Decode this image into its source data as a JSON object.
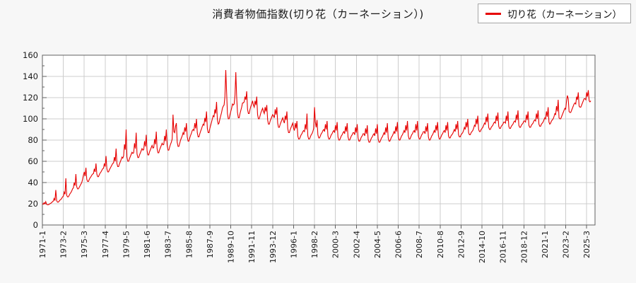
{
  "title": "消費者物価指数(切り花（カーネーション）)",
  "legend": {
    "label": "切り花（カーネーション）",
    "line_color": "#e60000"
  },
  "chart_data": {
    "type": "line",
    "title": "消費者物価指数(切り花（カーネーション）)",
    "series_name": "切り花（カーネーション）",
    "line_color": "#e60000",
    "grid": true,
    "legend_position": "top-right",
    "x_start": {
      "year": 1971,
      "month": 1
    },
    "x_tick_interval_months": 25,
    "x_tick_labels": [
      "1971-1",
      "1973-2",
      "1975-3",
      "1977-4",
      "1979-5",
      "1981-6",
      "1983-7",
      "1985-8",
      "1987-9",
      "1989-10",
      "1991-11",
      "1993-12",
      "1996-1",
      "1998-2",
      "2000-3",
      "2002-4",
      "2004-5",
      "2006-6",
      "2008-7",
      "2010-8",
      "2012-9",
      "2014-10",
      "2016-11",
      "2018-12",
      "2021-1",
      "2023-2",
      "2025-3"
    ],
    "ylim": [
      0,
      160
    ],
    "y_ticks": [
      0,
      20,
      40,
      60,
      80,
      100,
      120,
      140,
      160
    ],
    "y_minor_tick_step": 10,
    "monthly_values": [
      {
        "year": 1971,
        "values": [
          20,
          19.5,
          21,
          20,
          22,
          19.5,
          19,
          19,
          19.5,
          20,
          20.5,
          21
        ]
      },
      {
        "year": 1972,
        "values": [
          22,
          22.5,
          25,
          23,
          33,
          23,
          21.5,
          21.5,
          22.5,
          23.5,
          24,
          25
        ]
      },
      {
        "year": 1973,
        "values": [
          26.5,
          27,
          31,
          29,
          44,
          28,
          26.5,
          26.5,
          28,
          29.5,
          30.5,
          32
        ]
      },
      {
        "year": 1974,
        "values": [
          34,
          35,
          40,
          37,
          48,
          36,
          34,
          34,
          35.5,
          37,
          38.5,
          40
        ]
      },
      {
        "year": 1975,
        "values": [
          43,
          47,
          50,
          46,
          54,
          43,
          41,
          41,
          43,
          44.5,
          45.5,
          47
        ]
      },
      {
        "year": 1976,
        "values": [
          48,
          48.5,
          53,
          50,
          58,
          48,
          45.5,
          45.5,
          47.5,
          49,
          50,
          51.5
        ]
      },
      {
        "year": 1977,
        "values": [
          53,
          53.5,
          58,
          55,
          65,
          53,
          50,
          50,
          52,
          53.5,
          55,
          56.5
        ]
      },
      {
        "year": 1978,
        "values": [
          58,
          58.5,
          64,
          60,
          72,
          58,
          55,
          55,
          57.5,
          59.5,
          61.5,
          64
        ]
      },
      {
        "year": 1979,
        "values": [
          63,
          65,
          76,
          71,
          90,
          64,
          60,
          60,
          62.5,
          64.5,
          66.5,
          68.5
        ]
      },
      {
        "year": 1980,
        "values": [
          67.5,
          68,
          77,
          72,
          87,
          67,
          63.5,
          63.5,
          66,
          68,
          70,
          72
        ]
      },
      {
        "year": 1981,
        "values": [
          70.5,
          71,
          79,
          74,
          85,
          70,
          66,
          66,
          69,
          71,
          73,
          75
        ]
      },
      {
        "year": 1982,
        "values": [
          72.5,
          73,
          81,
          76,
          88,
          72,
          68,
          68,
          71,
          73,
          75,
          77
        ]
      },
      {
        "year": 1983,
        "values": [
          75.5,
          76,
          84,
          79,
          90,
          75,
          70.5,
          70.5,
          73.5,
          76,
          78,
          81
        ]
      },
      {
        "year": 1984,
        "values": [
          104,
          88,
          87,
          93,
          96,
          78,
          74,
          74,
          77,
          80,
          82,
          84
        ]
      },
      {
        "year": 1985,
        "values": [
          87,
          85,
          92,
          88,
          96,
          83,
          79,
          79,
          82,
          84.5,
          86.5,
          89
        ]
      },
      {
        "year": 1986,
        "values": [
          90,
          89,
          96,
          91,
          100,
          87,
          83,
          83,
          86,
          88.5,
          90.5,
          93
        ]
      },
      {
        "year": 1987,
        "values": [
          95,
          94,
          101,
          97,
          107,
          91,
          87,
          87,
          91,
          94,
          97,
          100
        ]
      },
      {
        "year": 1988,
        "values": [
          103,
          102,
          109,
          105,
          116,
          99,
          95,
          96,
          100,
          103,
          106,
          110
        ]
      },
      {
        "year": 1989,
        "values": [
          112,
          113,
          121,
          146,
          125,
          105,
          100,
          100,
          104,
          107,
          110,
          114
        ]
      },
      {
        "year": 1990,
        "values": [
          113,
          114,
          122,
          144,
          121,
          106,
          101,
          101,
          105,
          108,
          111,
          115
        ]
      },
      {
        "year": 1991,
        "values": [
          115,
          116,
          121,
          118,
          126,
          109,
          105,
          105,
          109,
          112,
          114,
          117
        ]
      },
      {
        "year": 1992,
        "values": [
          113,
          111,
          117,
          113,
          121,
          104,
          100,
          100,
          103,
          106,
          108,
          110
        ]
      },
      {
        "year": 1993,
        "values": [
          107,
          105,
          111,
          107,
          113,
          99,
          95,
          95,
          98,
          100,
          102,
          104
        ]
      },
      {
        "year": 1994,
        "values": [
          103,
          101,
          109,
          104,
          111,
          96,
          92,
          92,
          95,
          97,
          99,
          101
        ]
      },
      {
        "year": 1995,
        "values": [
          98,
          96,
          103,
          99,
          107,
          91,
          87,
          87,
          90,
          92,
          94,
          96
        ]
      },
      {
        "year": 1996,
        "values": [
          91,
          89,
          96,
          91,
          98,
          84,
          81,
          81,
          83,
          85,
          86,
          88
        ]
      },
      {
        "year": 1997,
        "values": [
          89,
          88,
          95,
          90,
          105,
          84,
          81,
          81,
          83,
          85,
          86,
          88
        ]
      },
      {
        "year": 1998,
        "values": [
          91,
          111,
          97,
          92,
          99,
          85,
          82,
          82,
          84,
          86,
          87,
          89
        ]
      },
      {
        "year": 1999,
        "values": [
          90,
          88,
          95,
          90,
          98,
          84,
          81,
          81,
          83,
          85,
          86,
          88
        ]
      },
      {
        "year": 2000,
        "values": [
          89,
          87,
          94,
          89,
          97,
          83,
          80,
          80,
          82,
          84,
          85,
          87
        ]
      },
      {
        "year": 2001,
        "values": [
          88,
          86,
          93,
          88,
          96,
          83,
          80,
          80,
          82,
          84,
          85,
          87
        ]
      },
      {
        "year": 2002,
        "values": [
          87,
          85,
          92,
          87,
          95,
          82,
          79,
          79,
          81,
          83,
          84,
          86
        ]
      },
      {
        "year": 2003,
        "values": [
          86,
          84,
          91,
          86,
          94,
          81,
          78,
          78,
          80,
          82,
          83,
          85
        ]
      },
      {
        "year": 2004,
        "values": [
          86,
          84,
          91,
          86,
          95,
          81,
          78,
          78,
          80,
          82,
          83,
          85
        ]
      },
      {
        "year": 2005,
        "values": [
          87,
          85,
          92,
          87,
          96,
          82,
          79,
          79,
          81,
          83,
          84,
          86
        ]
      },
      {
        "year": 2006,
        "values": [
          88,
          86,
          93,
          88,
          97,
          83,
          80,
          80,
          82,
          84,
          85,
          87
        ]
      },
      {
        "year": 2007,
        "values": [
          89,
          87,
          94,
          89,
          98,
          84,
          81,
          81,
          83,
          85,
          86,
          88
        ]
      },
      {
        "year": 2008,
        "values": [
          89,
          87,
          95,
          89,
          98,
          84,
          81,
          81,
          83,
          85,
          86,
          88
        ]
      },
      {
        "year": 2009,
        "values": [
          88,
          86,
          93,
          88,
          96,
          83,
          80,
          80,
          82,
          84,
          85,
          87
        ]
      },
      {
        "year": 2010,
        "values": [
          89,
          87,
          94,
          89,
          97,
          84,
          81,
          81,
          83,
          85,
          86,
          88
        ]
      },
      {
        "year": 2011,
        "values": [
          89,
          87,
          94,
          89,
          97,
          84,
          82,
          82,
          84,
          85,
          86,
          88
        ]
      },
      {
        "year": 2012,
        "values": [
          90,
          88,
          95,
          90,
          98,
          85,
          83,
          83,
          85,
          86,
          87,
          89
        ]
      },
      {
        "year": 2013,
        "values": [
          92,
          90,
          97,
          92,
          100,
          87,
          85,
          85,
          87,
          88,
          89,
          91
        ]
      },
      {
        "year": 2014,
        "values": [
          94,
          93,
          100,
          95,
          103,
          90,
          88,
          88,
          90,
          91,
          92,
          94
        ]
      },
      {
        "year": 2015,
        "values": [
          96,
          95,
          102,
          97,
          105,
          92,
          90,
          90,
          92,
          93,
          94,
          96
        ]
      },
      {
        "year": 2016,
        "values": [
          97,
          96,
          103,
          98,
          106,
          93,
          91,
          91,
          93,
          94,
          95,
          97
        ]
      },
      {
        "year": 2017,
        "values": [
          97,
          96,
          103,
          98,
          107,
          93,
          91,
          91,
          93,
          94,
          95,
          97
        ]
      },
      {
        "year": 2018,
        "values": [
          98,
          97,
          104,
          99,
          108,
          94,
          92,
          92,
          94,
          95,
          96,
          98
        ]
      },
      {
        "year": 2019,
        "values": [
          98,
          97,
          104,
          99,
          107,
          94,
          92,
          92,
          94,
          95,
          96,
          98
        ]
      },
      {
        "year": 2020,
        "values": [
          99,
          98,
          105,
          100,
          108,
          95,
          93,
          93,
          95,
          96,
          97,
          99
        ]
      },
      {
        "year": 2021,
        "values": [
          101,
          100,
          107,
          102,
          111,
          97,
          95,
          96,
          98,
          99,
          100,
          102
        ]
      },
      {
        "year": 2022,
        "values": [
          105,
          104,
          112,
          107,
          118,
          101,
          100,
          100,
          102,
          104,
          106,
          108
        ]
      },
      {
        "year": 2023,
        "values": [
          110,
          109,
          117,
          122,
          119,
          107,
          106,
          106,
          108,
          110,
          112,
          114
        ]
      },
      {
        "year": 2024,
        "values": [
          115,
          114,
          121,
          118,
          125,
          112,
          111,
          111,
          113,
          115,
          117,
          119
        ]
      },
      {
        "year": 2025,
        "values": [
          119,
          118,
          125,
          121,
          127,
          117,
          116,
          117
        ]
      }
    ]
  }
}
